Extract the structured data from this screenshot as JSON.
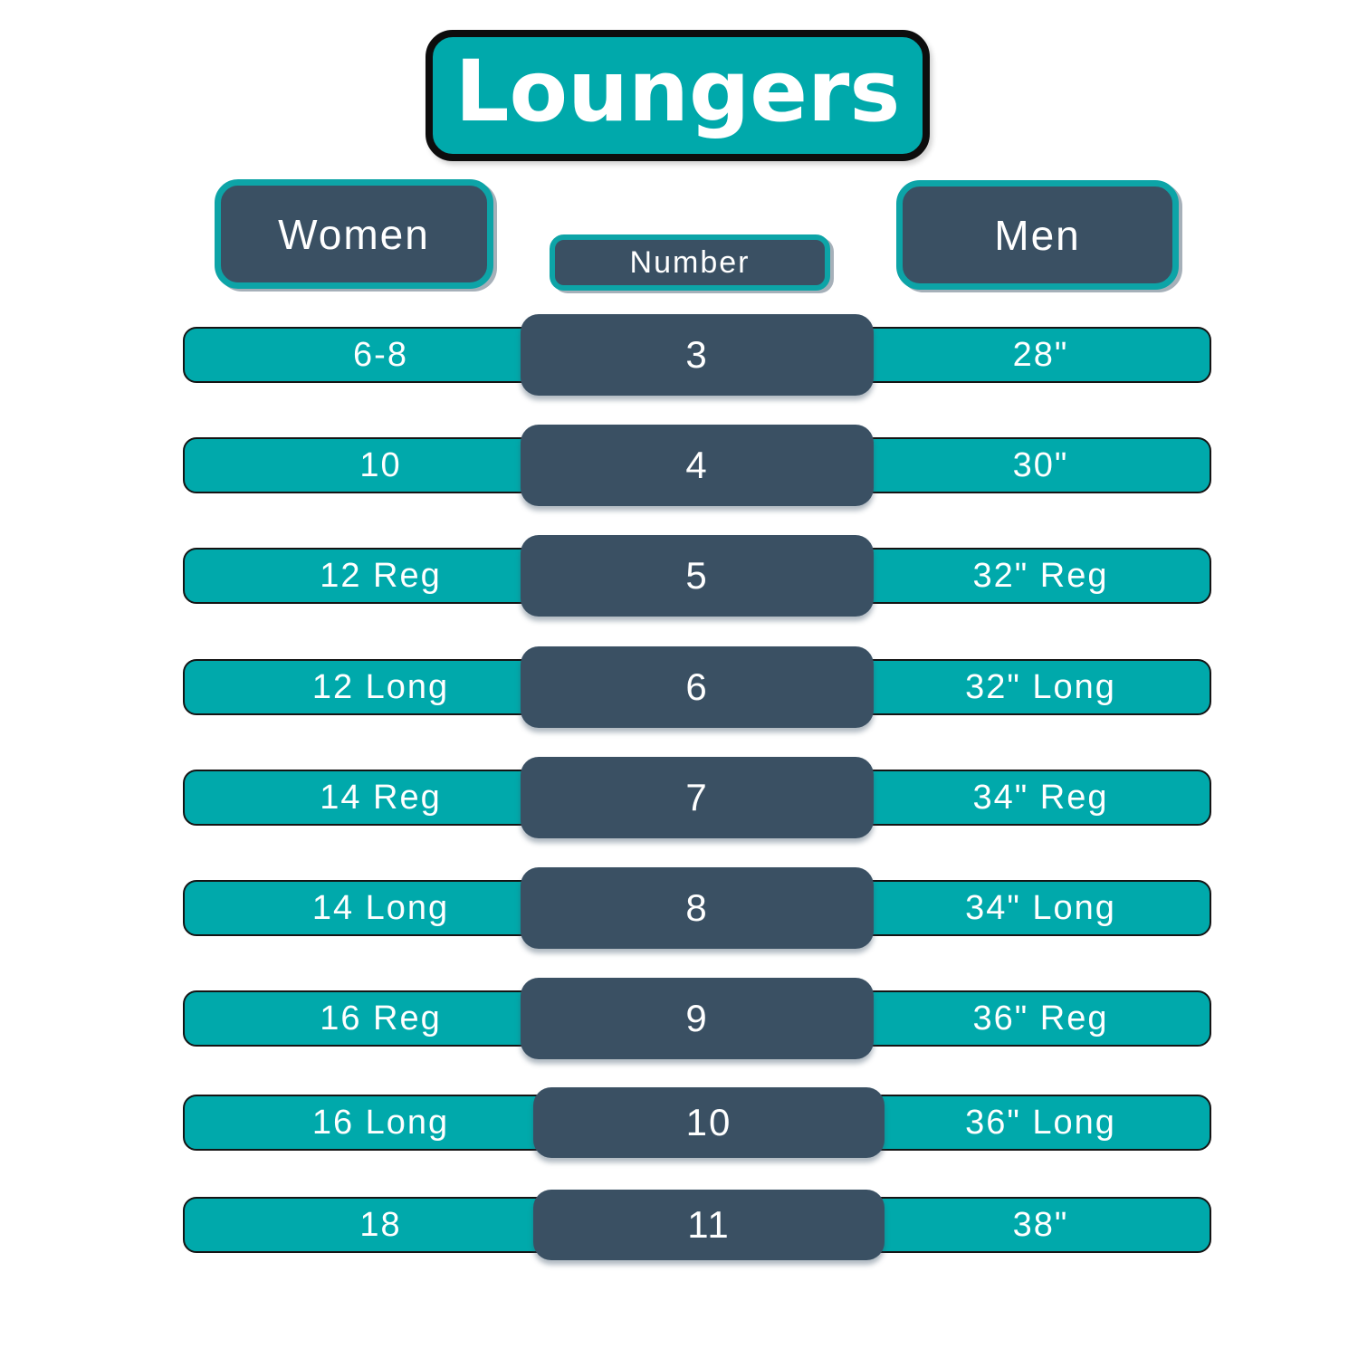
{
  "title": "Loungers",
  "colors": {
    "teal": "#00A9AB",
    "slate": "#3A5063",
    "title_outline": "#0D0D0D",
    "row_outline": "#141414",
    "text": "#FFFFFF",
    "background": "#FFFFFF"
  },
  "chart_data": {
    "type": "table",
    "title": "Loungers",
    "columns": [
      "Women",
      "Number",
      "Men"
    ],
    "rows": [
      [
        "6-8",
        "3",
        "28\""
      ],
      [
        "10",
        "4",
        "30\""
      ],
      [
        "12 Reg",
        "5",
        "32\" Reg"
      ],
      [
        "12 Long",
        "6",
        "32\" Long"
      ],
      [
        "14 Reg",
        "7",
        "34\" Reg"
      ],
      [
        "14 Long",
        "8",
        "34\" Long"
      ],
      [
        "16 Reg",
        "9",
        "36\" Reg"
      ],
      [
        "16 Long",
        "10",
        "36\" Long"
      ],
      [
        "18",
        "11",
        "38\""
      ]
    ],
    "layout_hints": {
      "row_band_color": "teal",
      "number_cell_color": "slate",
      "header_style": "rounded slate pills with teal border",
      "title_style": "rounded teal pill with black border"
    }
  }
}
